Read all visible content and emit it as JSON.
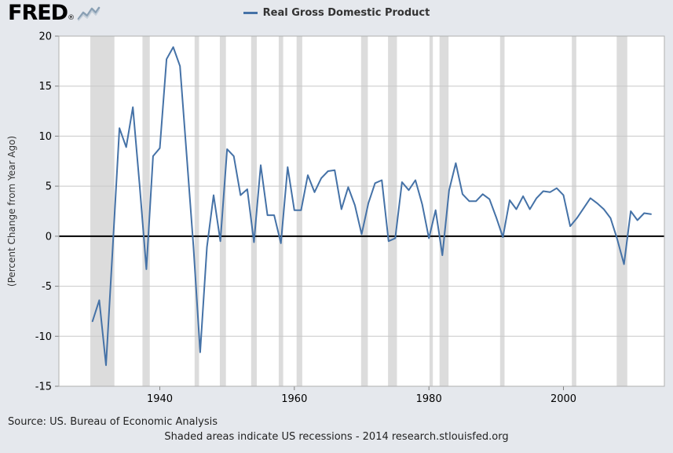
{
  "logo": {
    "text": "FRED",
    "registered": "®"
  },
  "legend": {
    "items": [
      {
        "label": "Real Gross Domestic Product",
        "color": "#4572a7"
      }
    ]
  },
  "footer": {
    "source": "Source: US. Bureau of Economic Analysis",
    "note": "Shaded areas indicate US recessions - 2014 research.stlouisfed.org"
  },
  "colors": {
    "background": "#e5e8ed",
    "plot_bg": "#ffffff",
    "grid": "#c8c8c8",
    "zero_line": "#000000",
    "recession": "#dcdcdc",
    "line": "#4572a7",
    "tick": "#808080",
    "plot_border": "#b0b0b0",
    "text": "#333333"
  },
  "chart_data": {
    "type": "line",
    "title": "Real Gross Domestic Product",
    "ylabel": "(Percent Change from Year Ago)",
    "xlabel": "",
    "legend_position": "top",
    "grid": true,
    "x_range": [
      1925,
      2015
    ],
    "ylim": [
      -15,
      20
    ],
    "y_ticks": [
      -15,
      -10,
      -5,
      0,
      5,
      10,
      15,
      20
    ],
    "x_ticks": [
      1940,
      1960,
      1980,
      2000
    ],
    "years": [
      1930,
      1931,
      1932,
      1933,
      1934,
      1935,
      1936,
      1937,
      1938,
      1939,
      1940,
      1941,
      1942,
      1943,
      1944,
      1945,
      1946,
      1947,
      1948,
      1949,
      1950,
      1951,
      1952,
      1953,
      1954,
      1955,
      1956,
      1957,
      1958,
      1959,
      1960,
      1961,
      1962,
      1963,
      1964,
      1965,
      1966,
      1967,
      1968,
      1969,
      1970,
      1971,
      1972,
      1973,
      1974,
      1975,
      1976,
      1977,
      1978,
      1979,
      1980,
      1981,
      1982,
      1983,
      1984,
      1985,
      1986,
      1987,
      1988,
      1989,
      1990,
      1991,
      1992,
      1993,
      1994,
      1995,
      1996,
      1997,
      1998,
      1999,
      2000,
      2001,
      2002,
      2003,
      2004,
      2005,
      2006,
      2007,
      2008,
      2009,
      2010,
      2011,
      2012,
      2013
    ],
    "values": [
      -8.5,
      -6.4,
      -12.9,
      -1.2,
      10.8,
      8.9,
      12.9,
      5.1,
      -3.3,
      8.0,
      8.8,
      17.7,
      18.9,
      17.0,
      8.0,
      -1.0,
      -11.6,
      -1.1,
      4.1,
      -0.5,
      8.7,
      8.0,
      4.1,
      4.7,
      -0.6,
      7.1,
      2.1,
      2.1,
      -0.7,
      6.9,
      2.6,
      2.6,
      6.1,
      4.4,
      5.8,
      6.5,
      6.6,
      2.7,
      4.9,
      3.1,
      0.2,
      3.3,
      5.3,
      5.6,
      -0.5,
      -0.2,
      5.4,
      4.6,
      5.6,
      3.2,
      -0.2,
      2.6,
      -1.9,
      4.6,
      7.3,
      4.2,
      3.5,
      3.5,
      4.2,
      3.7,
      1.9,
      -0.1,
      3.6,
      2.7,
      4.0,
      2.7,
      3.8,
      4.5,
      4.4,
      4.8,
      4.1,
      1.0,
      1.8,
      2.8,
      3.8,
      3.3,
      2.7,
      1.8,
      -0.3,
      -2.8,
      2.5,
      1.6,
      2.3,
      2.2
    ],
    "recessions": [
      [
        1929.67,
        1933.25
      ],
      [
        1937.42,
        1938.5
      ],
      [
        1945.17,
        1945.83
      ],
      [
        1948.92,
        1949.83
      ],
      [
        1953.58,
        1954.42
      ],
      [
        1957.67,
        1958.33
      ],
      [
        1960.33,
        1961.17
      ],
      [
        1969.92,
        1970.92
      ],
      [
        1973.92,
        1975.25
      ],
      [
        1980.08,
        1980.58
      ],
      [
        1981.58,
        1982.92
      ],
      [
        1990.58,
        1991.25
      ],
      [
        2001.25,
        2001.92
      ],
      [
        2007.92,
        2009.5
      ]
    ]
  }
}
